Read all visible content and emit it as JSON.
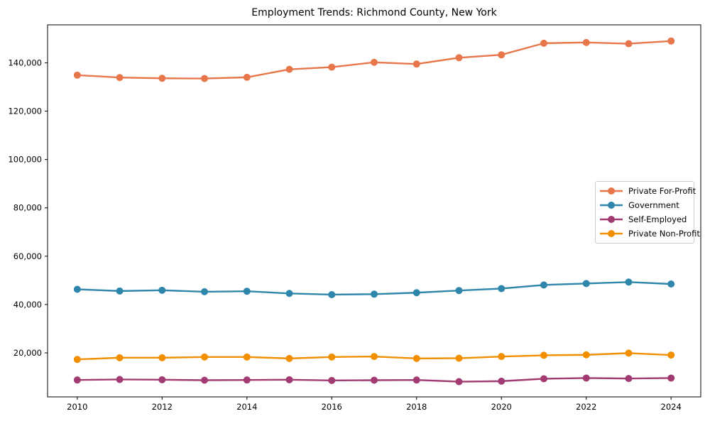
{
  "chart_data": {
    "type": "line",
    "title": "Employment Trends: Richmond County, New York",
    "xlabel": "",
    "ylabel": "",
    "x": [
      2010,
      2011,
      2012,
      2013,
      2014,
      2015,
      2016,
      2017,
      2018,
      2019,
      2020,
      2021,
      2022,
      2023,
      2024
    ],
    "series": [
      {
        "name": "Private For-Profit",
        "color": "#E8764B",
        "values": [
          134900,
          133900,
          133600,
          133500,
          134000,
          137300,
          138200,
          140200,
          139500,
          142100,
          143300,
          148100,
          148400,
          147900,
          149000
        ]
      },
      {
        "name": "Government",
        "color": "#2E86AB",
        "values": [
          46300,
          45600,
          45900,
          45300,
          45500,
          44600,
          44100,
          44300,
          44900,
          45800,
          46600,
          48100,
          48700,
          49300,
          48500
        ]
      },
      {
        "name": "Self-Employed",
        "color": "#A23B72",
        "values": [
          8800,
          9000,
          8900,
          8700,
          8800,
          8900,
          8600,
          8700,
          8800,
          8100,
          8300,
          9300,
          9600,
          9400,
          9600
        ]
      },
      {
        "name": "Private Non-Profit",
        "color": "#F18F01",
        "values": [
          17300,
          18000,
          18000,
          18300,
          18300,
          17700,
          18300,
          18500,
          17700,
          17800,
          18500,
          19000,
          19200,
          19900,
          19100
        ]
      }
    ],
    "xlim": [
      2009.3,
      2024.7
    ],
    "ylim": [
      1800,
      155700
    ],
    "xticks": {
      "values": [
        2010,
        2012,
        2014,
        2016,
        2018,
        2020,
        2022,
        2024
      ],
      "labels": [
        "2010",
        "2012",
        "2014",
        "2016",
        "2018",
        "2020",
        "2022",
        "2024"
      ]
    },
    "yticks": {
      "values": [
        20000,
        40000,
        60000,
        80000,
        100000,
        120000,
        140000
      ],
      "labels": [
        "20,000",
        "40,000",
        "60,000",
        "80,000",
        "100,000",
        "120,000",
        "140,000"
      ]
    },
    "grid": false,
    "marker": "circle",
    "legend": {
      "position": "center right",
      "border_color": "#cccccc",
      "background": "#ffffff"
    },
    "axis_color": "#000000"
  }
}
